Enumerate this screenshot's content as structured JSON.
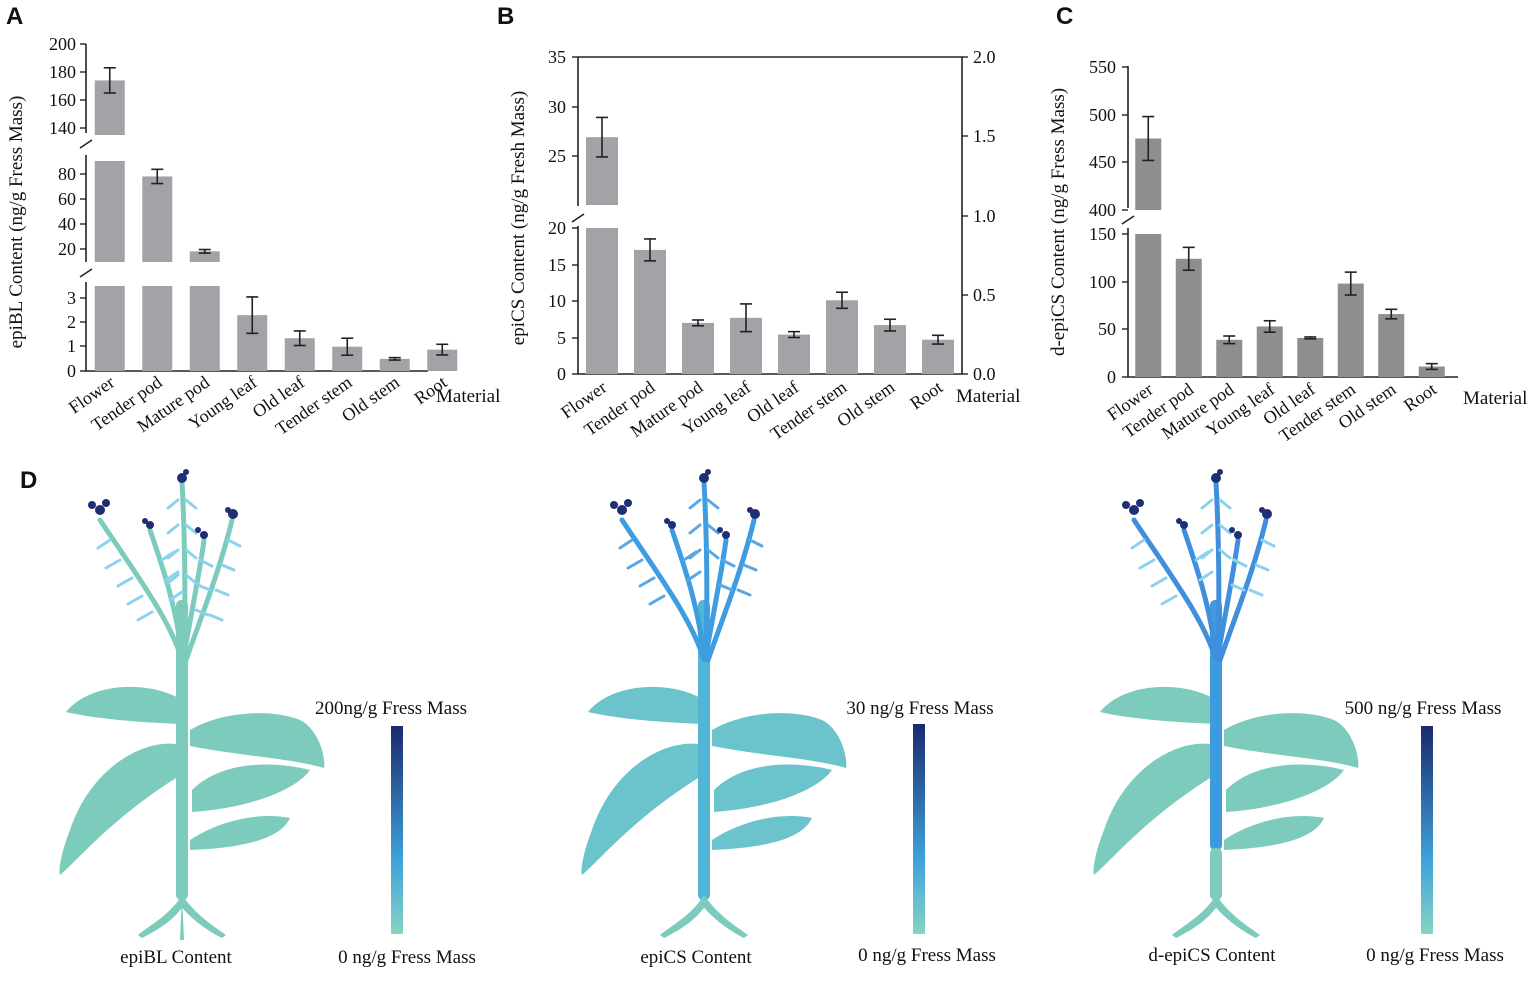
{
  "panels": {
    "a": "A",
    "b": "B",
    "c": "C",
    "d": "D"
  },
  "colors": {
    "bar_light": "#a3a3a7",
    "bar_dark": "#8e8e90",
    "plant_base": "#7ccbbd",
    "plant_mid": "#46a6de",
    "plant_dark": "#1e2f73"
  },
  "chart_data": [
    {
      "type": "bar",
      "panel": "A",
      "categories": [
        "Flower",
        "Tender pod",
        "Mature pod",
        "Young leaf",
        "Old leaf",
        "Tender stem",
        "Old stem",
        "Root"
      ],
      "values": [
        174,
        82,
        19,
        2.3,
        1.35,
        1.0,
        0.5,
        0.88
      ],
      "errors": [
        9,
        6,
        1.5,
        0.75,
        0.3,
        0.35,
        0.05,
        0.22
      ],
      "ylabel": "epiBL Content (ng/g Fress Mass)",
      "xlabel": "Material",
      "axis_breaks": [
        [
          3.5,
          10
        ],
        [
          95,
          135
        ]
      ],
      "y_ticks_segments": [
        [
          "0",
          "1",
          "2",
          "3"
        ],
        [
          "20",
          "40",
          "60",
          "80"
        ],
        [
          "140",
          "160",
          "180",
          "200"
        ]
      ]
    },
    {
      "type": "bar",
      "panel": "B",
      "categories": [
        "Flower",
        "Tender pod",
        "Mature pod",
        "Young leaf",
        "Old leaf",
        "Tender stem",
        "Old stem",
        "Root"
      ],
      "values": [
        28.5,
        17.0,
        7.0,
        7.7,
        5.4,
        10.1,
        6.7,
        4.7
      ],
      "errors": [
        1.6,
        1.5,
        0.4,
        1.9,
        0.4,
        1.1,
        0.8,
        0.6
      ],
      "ylabel": "epiCS Content (ng/g Fresh Mass)",
      "xlabel": "Material",
      "axis_breaks": [
        [
          20,
          23
        ]
      ],
      "y_ticks_left": [
        "0",
        "5",
        "10",
        "15",
        "20",
        "25",
        "30",
        "35"
      ],
      "y_ticks_right": [
        "0.0",
        "0.5",
        "1.0",
        "1.5",
        "2.0"
      ]
    },
    {
      "type": "bar",
      "panel": "C",
      "categories": [
        "Flower",
        "Tender pod",
        "Mature pod",
        "Young leaf",
        "Old leaf",
        "Tender stem",
        "Old stem",
        "Root"
      ],
      "values": [
        475,
        124,
        39,
        53,
        41,
        98,
        66,
        11
      ],
      "errors": [
        23,
        12,
        4,
        6,
        1,
        12,
        5,
        3
      ],
      "ylabel": "d-epiCS Content (ng/g Fress Mass)",
      "xlabel": "Material",
      "axis_breaks": [
        [
          150,
          400
        ]
      ],
      "y_ticks_segments": [
        [
          "0",
          "50",
          "100",
          "150"
        ],
        [
          "400",
          "450",
          "500",
          "550"
        ]
      ]
    }
  ],
  "legends": [
    {
      "title": "epiBL Content",
      "max": "200ng/g Fress Mass",
      "min": "0 ng/g Fress Mass"
    },
    {
      "title": "epiCS Content",
      "max": "30 ng/g Fress Mass",
      "min": "0 ng/g Fress Mass"
    },
    {
      "title": "d-epiCS Content",
      "max": "500 ng/g Fress Mass",
      "min": "0 ng/g Fress Mass"
    }
  ]
}
